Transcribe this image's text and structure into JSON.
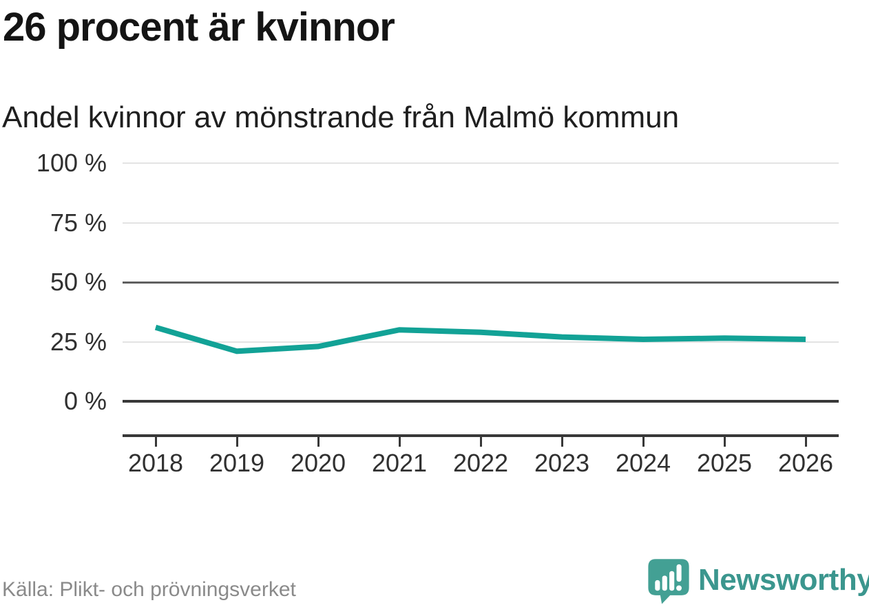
{
  "header": {
    "title": "26 procent är kvinnor",
    "subtitle": "Andel kvinnor av mönstrande från Malmö kommun"
  },
  "chart_data": {
    "type": "line",
    "title": "26 procent är kvinnor",
    "subtitle": "Andel kvinnor av mönstrande från Malmö kommun",
    "x": [
      2018,
      2019,
      2020,
      2021,
      2022,
      2023,
      2024,
      2025,
      2026
    ],
    "series": [
      {
        "name": "Andel kvinnor av mönstrande",
        "values": [
          31,
          21,
          23,
          30,
          29,
          27,
          26,
          26.5,
          26
        ]
      }
    ],
    "unit": "%",
    "ylim": [
      0,
      100
    ],
    "yticks": [
      0,
      25,
      50,
      75,
      100
    ],
    "ytick_labels": [
      "0 %",
      "25 %",
      "50 %",
      "75 %",
      "100 %"
    ],
    "grid": "horizontal",
    "legend": "none",
    "line_color": "#12a296"
  },
  "footer": {
    "source": "Källa: Plikt- och prövningsverket",
    "brand": "Newsworthy"
  },
  "colors": {
    "accent": "#12a296",
    "brand_icon": "#43a094",
    "brand_text": "#3b968e",
    "grid_light": "#e3e3e3",
    "grid_mid": "#5f5f5f",
    "axis_dark": "#383838",
    "text": "#141414",
    "muted": "#8a8a8a"
  }
}
